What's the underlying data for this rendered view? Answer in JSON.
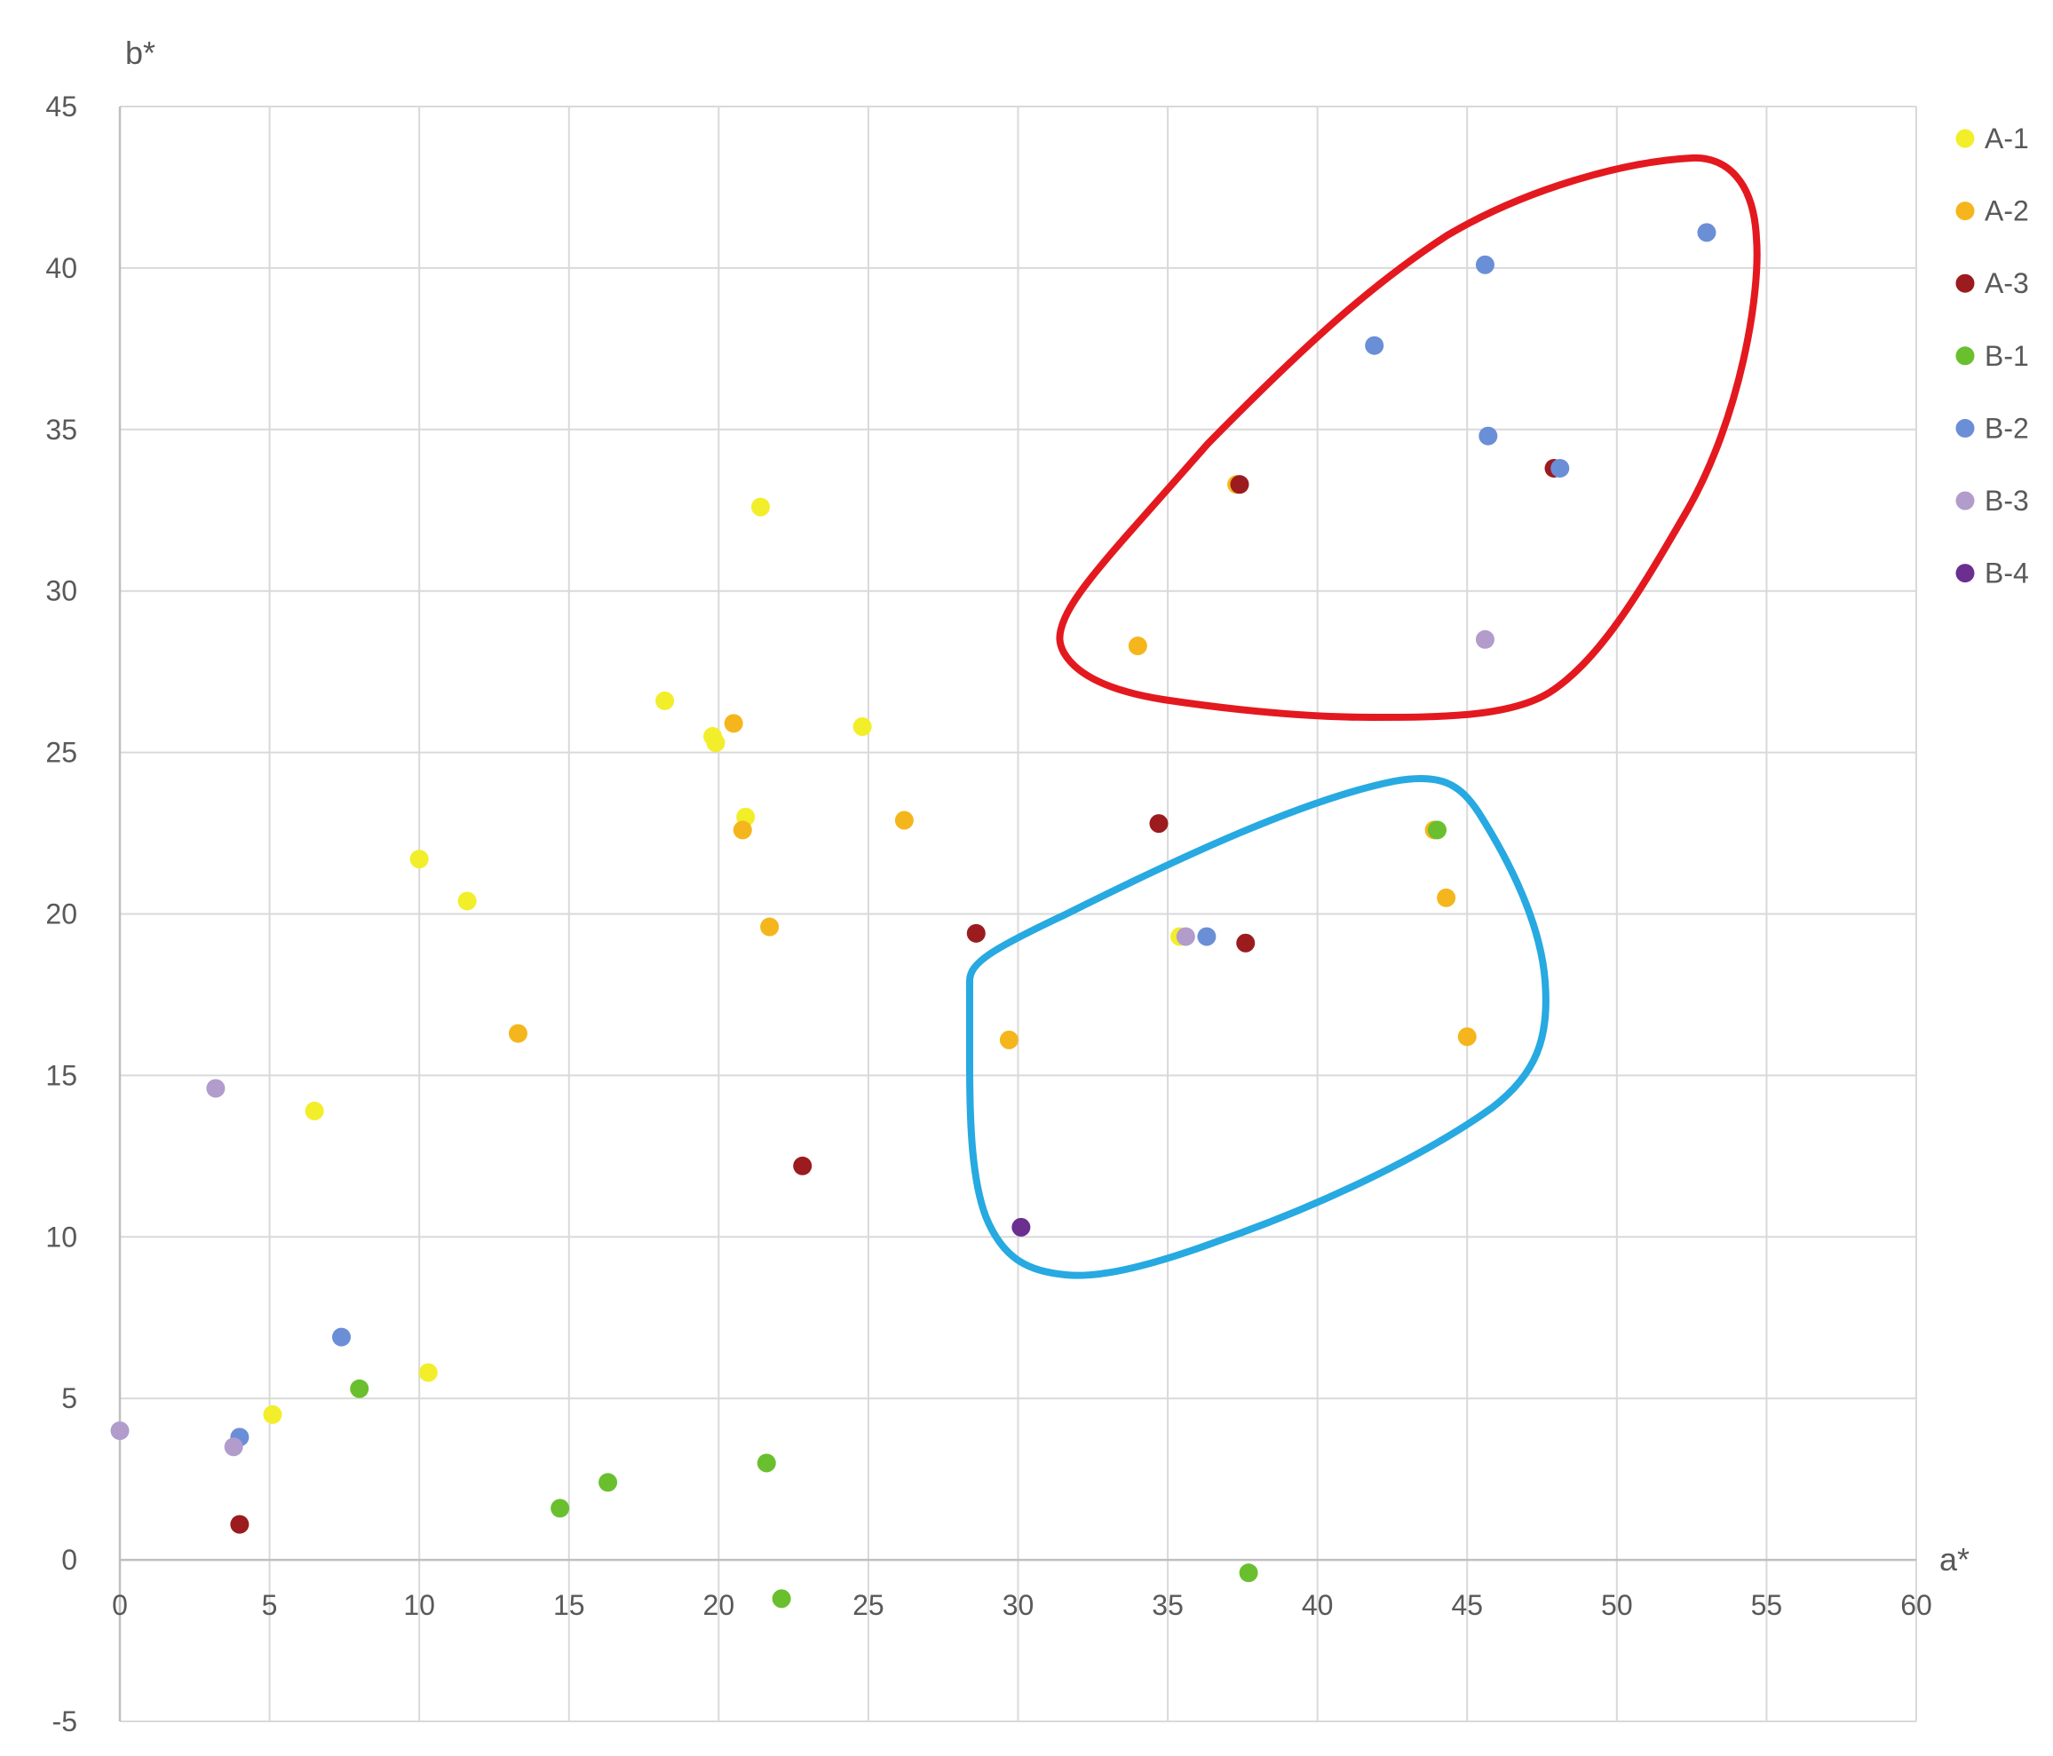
{
  "chart_data": {
    "type": "scatter",
    "title": "",
    "xlabel": "a*",
    "ylabel": "b*",
    "xlim": [
      0,
      60
    ],
    "ylim": [
      -5,
      45
    ],
    "x_ticks": [
      0,
      5,
      10,
      15,
      20,
      25,
      30,
      35,
      40,
      45,
      50,
      55,
      60
    ],
    "y_ticks": [
      -5,
      0,
      5,
      10,
      15,
      20,
      25,
      30,
      35,
      40,
      45
    ],
    "grid": true,
    "legend_position": "right",
    "series": [
      {
        "name": "A-1",
        "color": "#f2ee2a",
        "points": [
          [
            6.5,
            13.9
          ],
          [
            5.1,
            4.5
          ],
          [
            10.3,
            5.8
          ],
          [
            10.0,
            21.7
          ],
          [
            11.6,
            20.4
          ],
          [
            18.2,
            26.6
          ],
          [
            19.8,
            25.5
          ],
          [
            19.9,
            25.3
          ],
          [
            20.9,
            23.0
          ],
          [
            21.4,
            32.6
          ],
          [
            24.8,
            25.8
          ],
          [
            35.4,
            19.3
          ]
        ]
      },
      {
        "name": "A-2",
        "color": "#f4b61c",
        "points": [
          [
            13.3,
            16.3
          ],
          [
            20.5,
            25.9
          ],
          [
            20.8,
            22.6
          ],
          [
            21.7,
            19.6
          ],
          [
            26.2,
            22.9
          ],
          [
            29.7,
            16.1
          ],
          [
            34.0,
            28.3
          ],
          [
            37.3,
            33.3
          ],
          [
            43.9,
            22.6
          ],
          [
            44.3,
            20.5
          ],
          [
            45.0,
            16.2
          ]
        ]
      },
      {
        "name": "A-3",
        "color": "#9b1b1e",
        "points": [
          [
            4.0,
            1.1
          ],
          [
            22.8,
            12.2
          ],
          [
            28.6,
            19.4
          ],
          [
            34.7,
            22.8
          ],
          [
            37.6,
            19.1
          ],
          [
            37.4,
            33.3
          ],
          [
            47.9,
            33.8
          ]
        ]
      },
      {
        "name": "B-1",
        "color": "#6abf2e",
        "points": [
          [
            8.0,
            5.3
          ],
          [
            14.7,
            1.6
          ],
          [
            16.3,
            2.4
          ],
          [
            21.6,
            3.0
          ],
          [
            22.1,
            -1.2
          ],
          [
            37.7,
            -0.4
          ],
          [
            44.0,
            22.6
          ]
        ]
      },
      {
        "name": "B-2",
        "color": "#6a8fd6",
        "points": [
          [
            4.0,
            3.8
          ],
          [
            7.4,
            6.9
          ],
          [
            36.3,
            19.3
          ],
          [
            41.9,
            37.6
          ],
          [
            45.6,
            40.1
          ],
          [
            45.7,
            34.8
          ],
          [
            48.1,
            33.8
          ],
          [
            53.0,
            41.1
          ]
        ]
      },
      {
        "name": "B-3",
        "color": "#b29ccb",
        "points": [
          [
            0.0,
            4.0
          ],
          [
            3.2,
            14.6
          ],
          [
            3.8,
            3.5
          ],
          [
            35.6,
            19.3
          ],
          [
            45.6,
            28.5
          ]
        ]
      },
      {
        "name": "B-4",
        "color": "#6a2f8f",
        "points": [
          [
            30.1,
            10.3
          ]
        ]
      }
    ],
    "annotations": [
      {
        "type": "enclosure",
        "color": "#e3191f"
      },
      {
        "type": "enclosure",
        "color": "#27a9e1"
      }
    ]
  }
}
